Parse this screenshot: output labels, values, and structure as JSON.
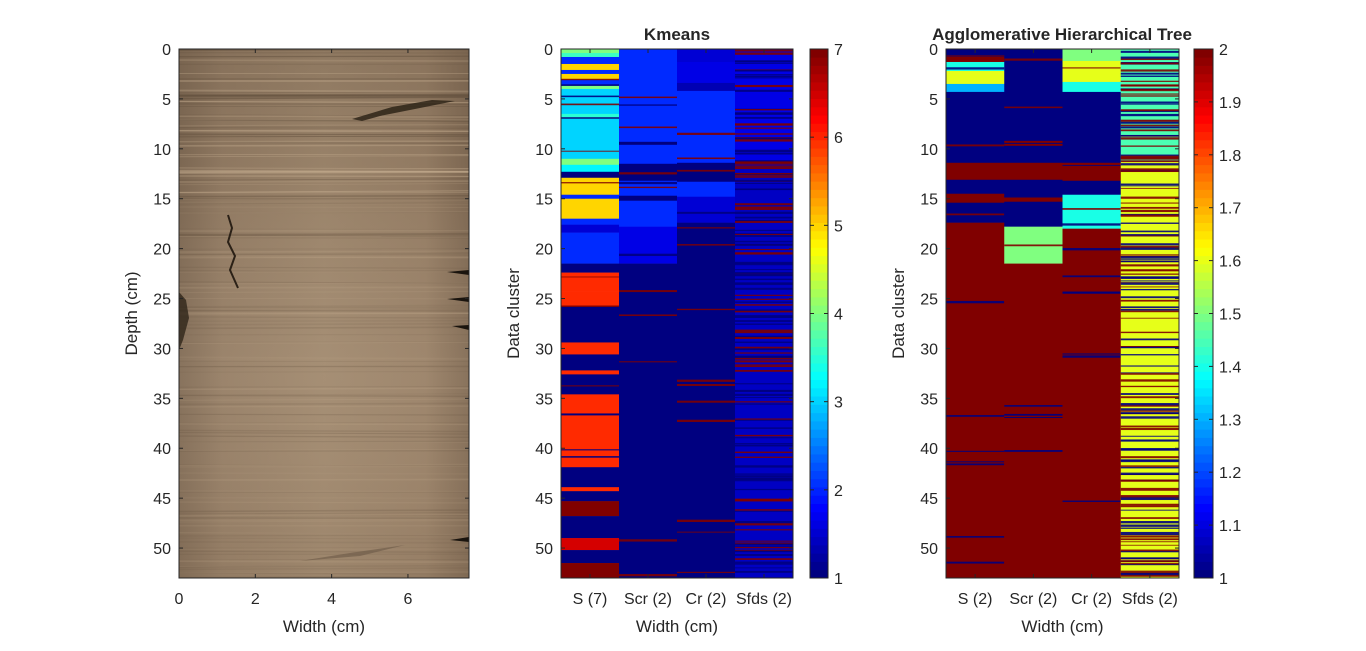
{
  "chart_data": [
    {
      "type": "image",
      "title": "",
      "xlabel": "Width (cm)",
      "ylabel": "Depth (cm)",
      "xlim": [
        0,
        7.6
      ],
      "ylim": [
        0,
        53
      ],
      "xticks": [
        "0",
        "2",
        "4",
        "6"
      ],
      "yticks": [
        "0",
        "5",
        "10",
        "15",
        "20",
        "25",
        "30",
        "35",
        "40",
        "45",
        "50"
      ],
      "image": "sediment-core-photo"
    },
    {
      "type": "heatmap",
      "title": "Kmeans",
      "xlabel": "Width (cm)",
      "ylabel": "Data cluster",
      "ylim": [
        0,
        53
      ],
      "yticks": [
        "0",
        "5",
        "10",
        "15",
        "20",
        "25",
        "30",
        "35",
        "40",
        "45",
        "50"
      ],
      "categories": [
        "S (7)",
        "Scr (2)",
        "Cr (2)",
        "Sfds (2)"
      ],
      "colormap": "jet",
      "clim": [
        1,
        7
      ],
      "colorbar_ticks": [
        "1",
        "2",
        "3",
        "4",
        "5",
        "6",
        "7"
      ],
      "columns": [
        {
          "name": "S (7)",
          "segments": [
            [
              0,
              0.4,
              4
            ],
            [
              0.4,
              0.8,
              3.6
            ],
            [
              0.8,
              1.5,
              2
            ],
            [
              1.5,
              2.1,
              5
            ],
            [
              2.1,
              2.5,
              2
            ],
            [
              2.5,
              3.1,
              5
            ],
            [
              3.1,
              3.6,
              2
            ],
            [
              3.6,
              4.0,
              4
            ],
            [
              4.0,
              4.4,
              3
            ],
            [
              4.4,
              6.5,
              3
            ],
            [
              6.5,
              7.0,
              3.5
            ],
            [
              7.0,
              11.0,
              3
            ],
            [
              11.0,
              11.6,
              4
            ],
            [
              11.6,
              12.3,
              3.2
            ],
            [
              12.3,
              12.9,
              1
            ],
            [
              12.9,
              13.4,
              5
            ],
            [
              13.4,
              14.6,
              5
            ],
            [
              14.6,
              15.0,
              2
            ],
            [
              15.0,
              17.0,
              5
            ],
            [
              17.0,
              17.6,
              2
            ],
            [
              17.6,
              18.4,
              1.5
            ],
            [
              18.4,
              21.5,
              2
            ],
            [
              21.5,
              22.4,
              1
            ],
            [
              22.4,
              24.3,
              6
            ],
            [
              24.3,
              25.8,
              6
            ],
            [
              25.8,
              29.4,
              1
            ],
            [
              29.4,
              30.6,
              6
            ],
            [
              30.6,
              32.2,
              1
            ],
            [
              32.2,
              32.6,
              6
            ],
            [
              32.6,
              34.6,
              1
            ],
            [
              34.6,
              41.0,
              6
            ],
            [
              41.0,
              41.9,
              6
            ],
            [
              41.9,
              43.9,
              1
            ],
            [
              43.9,
              44.3,
              6
            ],
            [
              44.3,
              45.3,
              1
            ],
            [
              45.3,
              46.8,
              7
            ],
            [
              46.8,
              49.0,
              1
            ],
            [
              49.0,
              50.2,
              6.5
            ],
            [
              50.2,
              51.5,
              1
            ],
            [
              51.5,
              53,
              7
            ]
          ]
        },
        {
          "name": "Scr (2)",
          "segments": [
            [
              0,
              9.3,
              2
            ],
            [
              9.3,
              9.6,
              1
            ],
            [
              9.6,
              11.5,
              2
            ],
            [
              11.5,
              13.2,
              1
            ],
            [
              13.2,
              14.7,
              2
            ],
            [
              14.7,
              15.2,
              1
            ],
            [
              15.2,
              17.8,
              2
            ],
            [
              17.8,
              21.5,
              1.6
            ],
            [
              21.5,
              53,
              1
            ]
          ]
        },
        {
          "name": "Cr (2)",
          "segments": [
            [
              0,
              1.3,
              1.5
            ],
            [
              1.3,
              3.4,
              1.6
            ],
            [
              3.4,
              4.2,
              1.3
            ],
            [
              4.2,
              11.4,
              2
            ],
            [
              11.4,
              13.3,
              1
            ],
            [
              13.3,
              14.8,
              2
            ],
            [
              14.8,
              17.4,
              1.5
            ],
            [
              17.4,
              53,
              1
            ]
          ]
        },
        {
          "name": "Sfds (2)",
          "segments": [
            [
              0,
              11.3,
              1.6
            ],
            [
              11.3,
              53,
              1.4
            ]
          ]
        }
      ]
    },
    {
      "type": "heatmap",
      "title": "Agglomerative Hierarchical Tree",
      "xlabel": "Width (cm)",
      "ylabel": "Data cluster",
      "ylim": [
        0,
        53
      ],
      "yticks": [
        "0",
        "5",
        "10",
        "15",
        "20",
        "25",
        "30",
        "35",
        "40",
        "45",
        "50"
      ],
      "categories": [
        "S (2)",
        "Scr (2)",
        "Cr (2)",
        "Sfds (2)"
      ],
      "colormap": "jet",
      "clim": [
        1,
        2
      ],
      "colorbar_ticks": [
        "1",
        "1.1",
        "1.2",
        "1.3",
        "1.4",
        "1.5",
        "1.6",
        "1.7",
        "1.8",
        "1.9",
        "2"
      ],
      "columns": [
        {
          "name": "S (2)",
          "segments": [
            [
              0,
              0.6,
              1
            ],
            [
              0.6,
              1.3,
              2
            ],
            [
              1.3,
              2.2,
              1.4
            ],
            [
              2.2,
              3.5,
              1.6
            ],
            [
              3.5,
              4.3,
              1.3
            ],
            [
              4.3,
              11.4,
              1
            ],
            [
              11.4,
              13.1,
              2
            ],
            [
              13.1,
              14.5,
              1
            ],
            [
              14.5,
              15.4,
              2
            ],
            [
              15.4,
              17.4,
              1
            ],
            [
              17.4,
              53,
              2
            ]
          ]
        },
        {
          "name": "Scr (2)",
          "segments": [
            [
              0,
              9.2,
              1
            ],
            [
              9.2,
              9.7,
              2
            ],
            [
              9.7,
              11.4,
              1
            ],
            [
              11.4,
              13.1,
              2
            ],
            [
              13.1,
              14.8,
              1
            ],
            [
              14.8,
              15.3,
              2
            ],
            [
              15.3,
              17.8,
              1
            ],
            [
              17.8,
              21.5,
              1.5
            ],
            [
              21.5,
              53,
              2
            ]
          ]
        },
        {
          "name": "Cr (2)",
          "segments": [
            [
              0,
              1.2,
              1.5
            ],
            [
              1.2,
              3.3,
              1.6
            ],
            [
              3.3,
              4.3,
              1.4
            ],
            [
              4.3,
              11.4,
              1
            ],
            [
              11.4,
              13.2,
              2
            ],
            [
              13.2,
              14.6,
              1
            ],
            [
              14.6,
              18.0,
              1.4
            ],
            [
              18.0,
              53,
              2
            ]
          ]
        },
        {
          "name": "Sfds (2)",
          "segments": [
            [
              0,
              11.3,
              1.45
            ],
            [
              11.3,
              53,
              1.6
            ]
          ]
        }
      ]
    }
  ]
}
